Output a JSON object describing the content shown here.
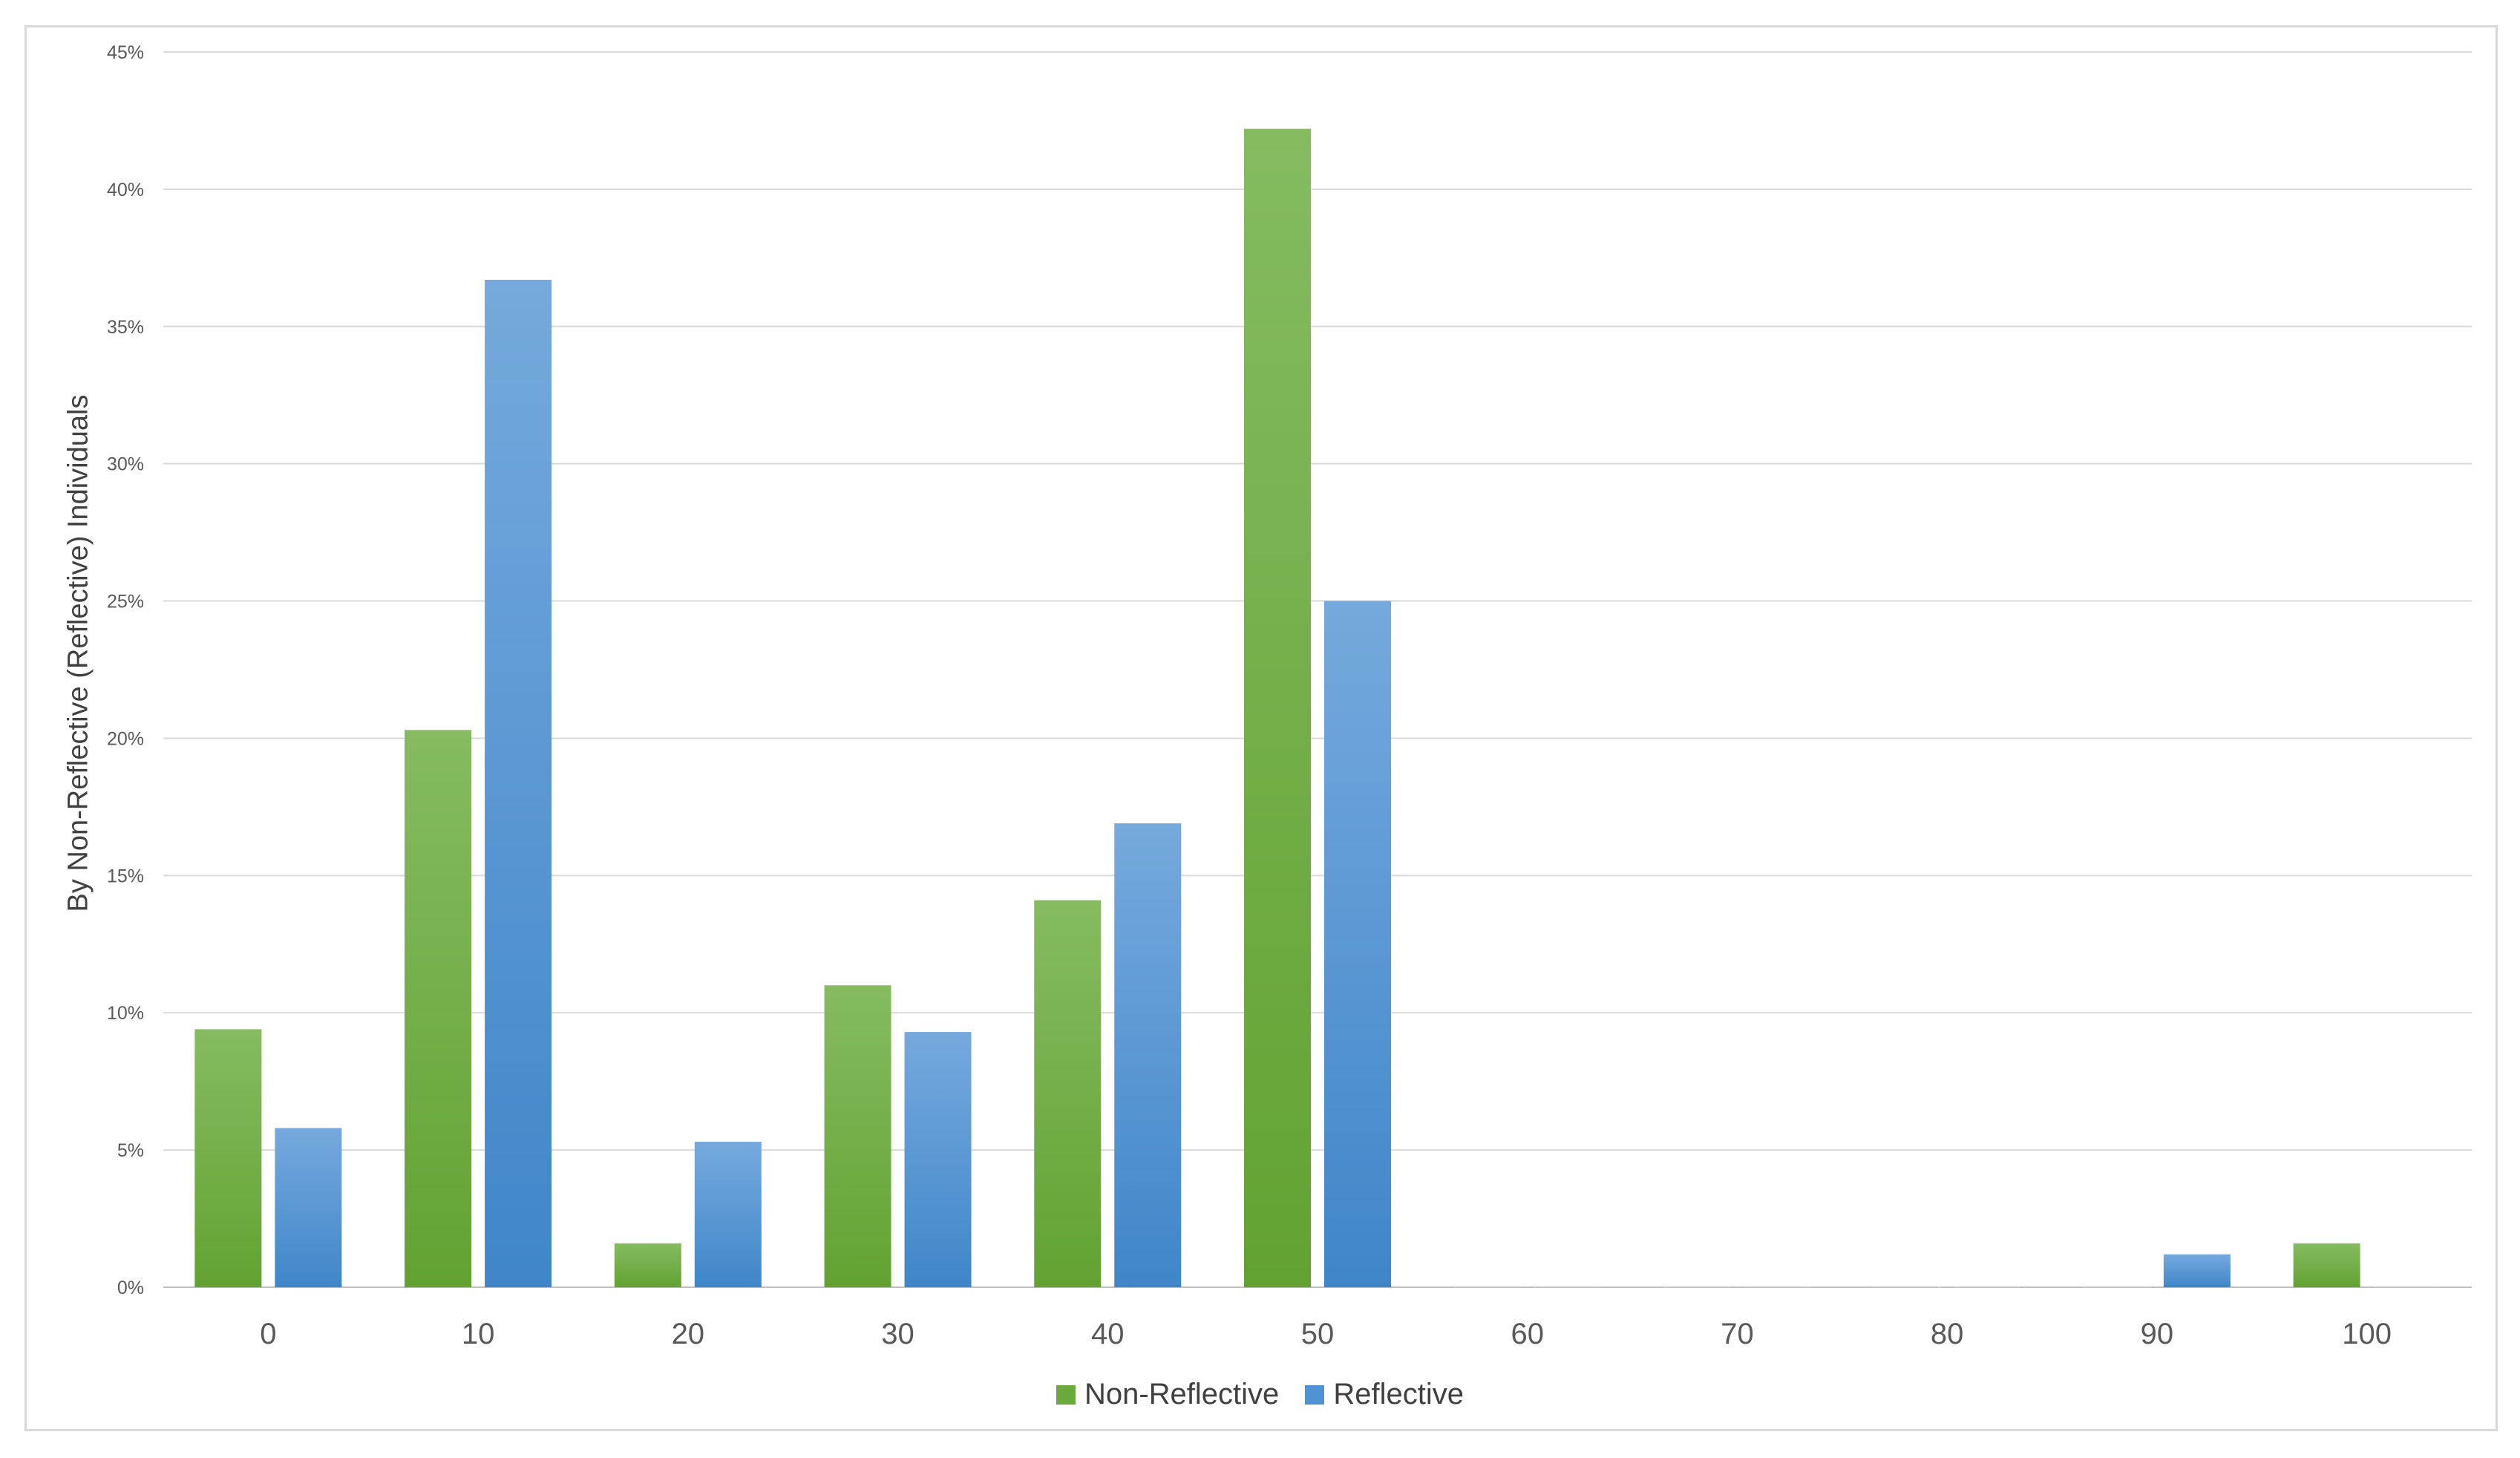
{
  "chart_data": {
    "type": "bar",
    "title": "",
    "xlabel": "",
    "ylabel": "By Non-Reflective (Reflective) Individuals",
    "categories": [
      "0",
      "10",
      "20",
      "30",
      "40",
      "50",
      "60",
      "70",
      "80",
      "90",
      "100"
    ],
    "series": [
      {
        "name": "Non-Reflective",
        "color": "#6aaa3d",
        "values": [
          9.4,
          20.3,
          1.6,
          11.0,
          14.1,
          42.2,
          0,
          0,
          0,
          0,
          1.6
        ]
      },
      {
        "name": "Reflective",
        "color": "#4f93d4",
        "values": [
          5.8,
          36.7,
          5.3,
          9.3,
          16.9,
          25.0,
          0,
          0,
          0,
          1.2,
          0
        ]
      }
    ],
    "ylim": [
      0,
      45
    ],
    "yticks": [
      "0%",
      "5%",
      "10%",
      "15%",
      "20%",
      "25%",
      "30%",
      "35%",
      "40%",
      "45%"
    ],
    "grid": true,
    "legend_position": "bottom"
  }
}
